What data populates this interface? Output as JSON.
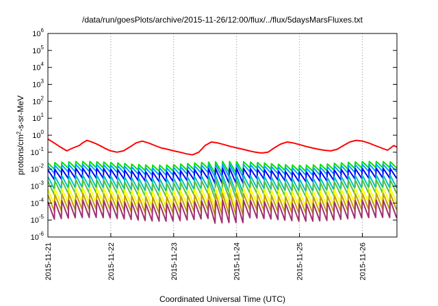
{
  "chart_data": {
    "type": "line",
    "title": "/data/run/goesPlots/archive/2015-11-26/12:00/flux/../flux/5daysMarsFluxes.txt",
    "xlabel": "Coordinated Universal Time (UTC)",
    "ylabel": "protons/cm²-s-sr-MeV",
    "ylabel_parts": {
      "pre": "protons/cm",
      "sup": "2",
      "post": "-s-sr-MeV"
    },
    "y_scale": "log",
    "ylim": [
      1e-06,
      1000000.0
    ],
    "y_ticks": [
      {
        "value": 1000000.0,
        "base": "10",
        "exp": "6"
      },
      {
        "value": 100000.0,
        "base": "10",
        "exp": "5"
      },
      {
        "value": 10000.0,
        "base": "10",
        "exp": "4"
      },
      {
        "value": 1000.0,
        "base": "10",
        "exp": "3"
      },
      {
        "value": 100.0,
        "base": "10",
        "exp": "2"
      },
      {
        "value": 10.0,
        "base": "10",
        "exp": "1"
      },
      {
        "value": 1,
        "base": "10",
        "exp": "0"
      },
      {
        "value": 0.1,
        "base": "10",
        "exp": "-1"
      },
      {
        "value": 0.01,
        "base": "10",
        "exp": "-2"
      },
      {
        "value": 0.001,
        "base": "10",
        "exp": "-3"
      },
      {
        "value": 0.0001,
        "base": "10",
        "exp": "-4"
      },
      {
        "value": 1e-05,
        "base": "10",
        "exp": "-5"
      },
      {
        "value": 1e-06,
        "base": "10",
        "exp": "-6"
      }
    ],
    "x_ticks": [
      "2015-11-21",
      "2015-11-22",
      "2015-11-23",
      "2015-11-24",
      "2015-11-25",
      "2015-11-26"
    ],
    "x_range_days": [
      0,
      5.55
    ],
    "grid": true,
    "legend": "none",
    "series": [
      {
        "color": "#ff0000",
        "x": [
          0,
          0.1,
          0.2,
          0.3,
          0.4,
          0.5,
          0.55,
          0.62,
          0.7,
          0.78,
          0.85,
          0.92,
          1.0,
          1.1,
          1.2,
          1.3,
          1.4,
          1.5,
          1.6,
          1.7,
          1.8,
          1.9,
          2.0,
          2.1,
          2.2,
          2.3,
          2.4,
          2.5,
          2.6,
          2.7,
          2.8,
          2.9,
          3.0,
          3.1,
          3.2,
          3.3,
          3.4,
          3.5,
          3.6,
          3.7,
          3.8,
          3.9,
          4.0,
          4.1,
          4.2,
          4.3,
          4.4,
          4.5,
          4.6,
          4.7,
          4.8,
          4.9,
          5.0,
          5.1,
          5.2,
          5.3,
          5.4,
          5.5,
          5.55
        ],
        "y": [
          0.6,
          0.35,
          0.2,
          0.12,
          0.18,
          0.25,
          0.35,
          0.5,
          0.4,
          0.3,
          0.22,
          0.16,
          0.12,
          0.1,
          0.12,
          0.2,
          0.35,
          0.45,
          0.35,
          0.25,
          0.18,
          0.15,
          0.12,
          0.1,
          0.08,
          0.07,
          0.1,
          0.25,
          0.4,
          0.35,
          0.28,
          0.22,
          0.18,
          0.15,
          0.12,
          0.1,
          0.09,
          0.1,
          0.18,
          0.3,
          0.4,
          0.35,
          0.28,
          0.22,
          0.18,
          0.15,
          0.13,
          0.12,
          0.15,
          0.25,
          0.4,
          0.5,
          0.45,
          0.35,
          0.25,
          0.18,
          0.13,
          0.25,
          0.2
        ]
      },
      {
        "color": "#00e000",
        "base": 0.012,
        "amp": 1.9,
        "dip": 1.0
      },
      {
        "color": "#00a0ff",
        "base": 0.007,
        "amp": 2.2,
        "dip": 1.0
      },
      {
        "color": "#0000ff",
        "base": 0.0035,
        "amp": 2.6,
        "dip": 1.2
      },
      {
        "color": "#00c0c0",
        "base": 0.0012,
        "amp": 3.0,
        "dip": 1.5
      },
      {
        "color": "#50c040",
        "base": 0.0006,
        "amp": 3.2,
        "dip": 1.6
      },
      {
        "color": "#ffff00",
        "base": 0.00018,
        "amp": 3.5,
        "dip": 1.8
      },
      {
        "color": "#c0a000",
        "base": 8e-05,
        "amp": 3.8,
        "dip": 2.0
      },
      {
        "color": "#a03070",
        "base": 3e-05,
        "amp": 4.0,
        "dip": 2.2
      }
    ],
    "sawtooth_period_days": 0.1111
  }
}
